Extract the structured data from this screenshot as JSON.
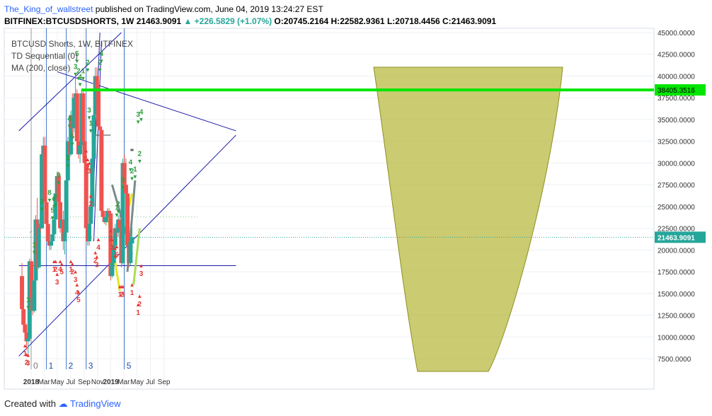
{
  "header": {
    "username": "The_King_of_wallstreet",
    "published_text": "published on TradingView.com, June 04, 2019 13:24:27 EST",
    "symbol": "BITFINEX:BTCUSDSHORTS, 1W",
    "last_value": "21463.9091",
    "change": "▲ +226.5829 (+1.07%)",
    "open_label": "O:",
    "open": "20745.2164",
    "high_label": "H:",
    "high": "22582.9361",
    "low_label": "L:",
    "low": "20718.4456",
    "close_label": "C:",
    "close": "21463.9091"
  },
  "legend": {
    "series": "BTCUSD Shorts, 1W, BITFINEX",
    "indicator1": "TD Sequential (0)",
    "indicator2": "MA (200, close)"
  },
  "footer": {
    "created_with": "Created with",
    "brand": "TradingView"
  },
  "colors": {
    "up": "#26a69a",
    "down": "#ef5350",
    "hline": "#00e600",
    "channel": "#1a1aa8",
    "cup": "#b5b536",
    "price_label": "#26a69a"
  },
  "chart_data": {
    "type": "candlestick",
    "title": "BTCUSD Shorts, 1W, BITFINEX",
    "y_ticks": [
      7500,
      10000,
      12500,
      15000,
      17500,
      20000,
      22500,
      25000,
      27500,
      30000,
      32500,
      35000,
      37500,
      40000,
      42500,
      45000
    ],
    "y_tick_labels": [
      "7500.0000",
      "10000.0000",
      "12500.0000",
      "15000.0000",
      "17500.0000",
      "20000.0000",
      "22500.0000",
      "25000.0000",
      "27500.0000",
      "30000.0000",
      "32500.0000",
      "35000.0000",
      "37500.0000",
      "40000.0000",
      "42500.0000",
      "45000.0000"
    ],
    "ylim": [
      5500,
      46600
    ],
    "x_labels": [
      "2018",
      "Mar",
      "May",
      "Jul",
      "Sep",
      "Nov",
      "2019",
      "Mar",
      "May",
      "Jul",
      "Sep"
    ],
    "x_label_dates": [
      "2018-01-01",
      "2018-03-01",
      "2018-05-01",
      "2018-07-01",
      "2018-09-01",
      "2018-11-01",
      "2019-01-01",
      "2019-03-01",
      "2019-05-01",
      "2019-07-01",
      "2019-09-01"
    ],
    "horizontal_line": {
      "value": 38405.3516,
      "label": "38405.3516"
    },
    "last_price": {
      "value": 21463.9091,
      "label": "21463.9091"
    },
    "cycle_markers": [
      {
        "label": "0",
        "date": "2018-01-01"
      },
      {
        "label": "1",
        "date": "2018-03-12"
      },
      {
        "label": "2",
        "date": "2018-06-11"
      },
      {
        "label": "3",
        "date": "2018-09-10"
      },
      {
        "label": "5",
        "date": "2019-03-04"
      }
    ],
    "candles": [
      [
        17000,
        18500,
        12000,
        13200
      ],
      [
        13200,
        14200,
        10500,
        11400
      ],
      [
        11400,
        11800,
        9500,
        10500
      ],
      [
        10500,
        11500,
        8500,
        9500
      ],
      [
        9500,
        10200,
        7800,
        9800
      ],
      [
        9800,
        19000,
        9700,
        18700
      ],
      [
        18700,
        19000,
        13000,
        14500
      ],
      [
        14500,
        15500,
        12500,
        13000
      ],
      [
        13000,
        17000,
        12800,
        16500
      ],
      [
        16500,
        24000,
        16400,
        23500
      ],
      [
        23500,
        26000,
        17500,
        18000
      ],
      [
        18000,
        23500,
        17800,
        23000
      ],
      [
        23000,
        24000,
        22000,
        22500
      ],
      [
        22500,
        31500,
        22400,
        31000
      ],
      [
        31000,
        33000,
        30000,
        32000
      ],
      [
        32000,
        33000,
        25000,
        25500
      ],
      [
        25500,
        26000,
        22500,
        23000
      ],
      [
        23000,
        24000,
        20500,
        21000
      ],
      [
        21000,
        21500,
        20000,
        20500
      ],
      [
        20500,
        21500,
        20000,
        21000
      ],
      [
        21000,
        22000,
        20500,
        21800
      ],
      [
        21800,
        24000,
        21500,
        23500
      ],
      [
        23500,
        27000,
        23000,
        26500
      ],
      [
        26500,
        29000,
        26000,
        28500
      ],
      [
        28500,
        29000,
        25000,
        25500
      ],
      [
        25500,
        26000,
        22000,
        22500
      ],
      [
        22500,
        24000,
        21000,
        23500
      ],
      [
        23500,
        24500,
        20000,
        21000
      ],
      [
        21000,
        22500,
        19500,
        22000
      ],
      [
        22000,
        28500,
        21800,
        28000
      ],
      [
        28000,
        33000,
        27500,
        32500
      ],
      [
        32500,
        35500,
        30500,
        31000
      ],
      [
        31000,
        36000,
        30800,
        35500
      ],
      [
        35500,
        38000,
        33000,
        34000
      ],
      [
        34000,
        38000,
        33500,
        37500
      ],
      [
        37500,
        40000,
        36000,
        38000
      ],
      [
        38000,
        38500,
        32000,
        32500
      ],
      [
        32500,
        36000,
        30500,
        31000
      ],
      [
        31000,
        33000,
        30000,
        32000
      ],
      [
        32000,
        38500,
        31500,
        38000
      ],
      [
        38000,
        38500,
        32000,
        32500
      ],
      [
        32500,
        34000,
        29500,
        30000
      ],
      [
        30000,
        31000,
        22000,
        22500
      ],
      [
        22500,
        23000,
        20500,
        21000
      ],
      [
        21000,
        23500,
        20500,
        23000
      ],
      [
        23000,
        25500,
        22500,
        25000
      ],
      [
        25000,
        31000,
        24800,
        30500
      ],
      [
        30500,
        36000,
        30000,
        35500
      ],
      [
        35500,
        41000,
        35000,
        40000
      ],
      [
        40000,
        41000,
        37500,
        38500
      ],
      [
        38500,
        39000,
        34000,
        34200
      ],
      [
        34200,
        34500,
        33500,
        33800
      ],
      [
        33800,
        34000,
        24000,
        24500
      ],
      [
        24500,
        24800,
        23500,
        23800
      ],
      [
        23800,
        24200,
        23000,
        23200
      ],
      [
        23200,
        24000,
        22800,
        23800
      ],
      [
        23800,
        24800,
        23500,
        24500
      ],
      [
        24500,
        24800,
        24000,
        24200
      ],
      [
        24200,
        24300,
        16500,
        17000
      ],
      [
        17000,
        19500,
        16800,
        18500
      ],
      [
        18500,
        21000,
        18000,
        20500
      ],
      [
        20500,
        23000,
        20000,
        22500
      ],
      [
        22500,
        23500,
        21500,
        22000
      ],
      [
        22000,
        24000,
        21500,
        23500
      ],
      [
        23500,
        24000,
        22000,
        22500
      ],
      [
        22500,
        23000,
        18000,
        18500
      ],
      [
        18500,
        30500,
        18300,
        30000
      ],
      [
        30000,
        31000,
        27000,
        27500
      ],
      [
        27500,
        30500,
        26000,
        26500
      ],
      [
        26500,
        27000,
        20000,
        20500
      ],
      [
        20500,
        21000,
        18000,
        18500
      ],
      [
        18500,
        21500,
        18200,
        21000
      ],
      [
        20745,
        22583,
        20718,
        21464
      ]
    ]
  }
}
